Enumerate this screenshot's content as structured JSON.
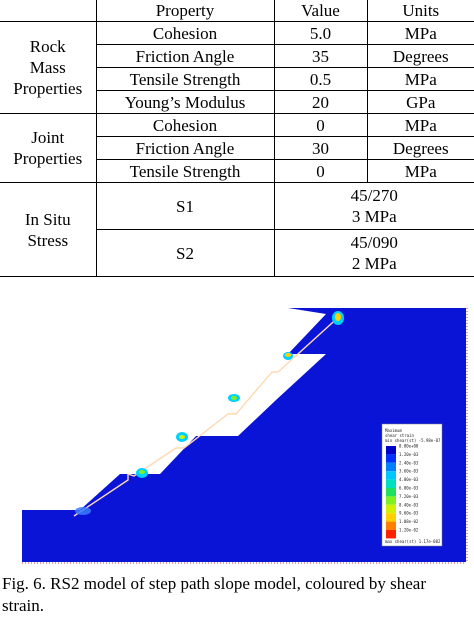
{
  "table": {
    "headers": [
      "Property",
      "Value",
      "Units"
    ],
    "groups": [
      {
        "label_lines": [
          "Rock",
          "Mass",
          "Properties"
        ],
        "rows": [
          {
            "property": "Cohesion",
            "value": "5.0",
            "units": "MPa"
          },
          {
            "property": "Friction Angle",
            "value": "35",
            "units": "Degrees"
          },
          {
            "property": "Tensile Strength",
            "value": "0.5",
            "units": "MPa"
          },
          {
            "property": "Young’s Modulus",
            "value": "20",
            "units": "GPa"
          }
        ]
      },
      {
        "label_lines": [
          "Joint",
          "Properties"
        ],
        "rows": [
          {
            "property": "Cohesion",
            "value": "0",
            "units": "MPa"
          },
          {
            "property": "Friction Angle",
            "value": "30",
            "units": "Degrees"
          },
          {
            "property": "Tensile Strength",
            "value": "0",
            "units": "MPa"
          }
        ]
      }
    ],
    "in_situ": {
      "label_lines": [
        "In Situ",
        "Stress"
      ],
      "rows": [
        {
          "name": "S1",
          "line1": "45/270",
          "line2": "3 MPa"
        },
        {
          "name": "S2",
          "line1": "45/090",
          "line2": "2 MPa"
        }
      ]
    }
  },
  "figure": {
    "legend_title": "Maximum",
    "legend_subtitle": "shear strain",
    "legend_minmax_top": "min shear(st) -5.98e-07",
    "legend_minmax_bottom": "max shear(st) 1.17e-002",
    "legend_values": [
      "0.00e+00",
      "1.20e-03",
      "2.40e-03",
      "3.60e-03",
      "4.80e-03",
      "6.00e-03",
      "7.20e-03",
      "8.40e-03",
      "9.60e-03",
      "1.08e-02",
      "1.20e-02"
    ],
    "colors": {
      "model_fill": "#0a14d6",
      "joint_line": "#ffd9b3",
      "legend_scale": [
        "#0000c8",
        "#0032ff",
        "#0080ff",
        "#00c8ff",
        "#00e0c0",
        "#20e060",
        "#80f020",
        "#d0f000",
        "#ffd000",
        "#ff8000",
        "#ff2000"
      ]
    }
  },
  "caption": {
    "line1": "Fig. 6. RS2 model of step path slope model, coloured by shear",
    "line2": "strain."
  }
}
